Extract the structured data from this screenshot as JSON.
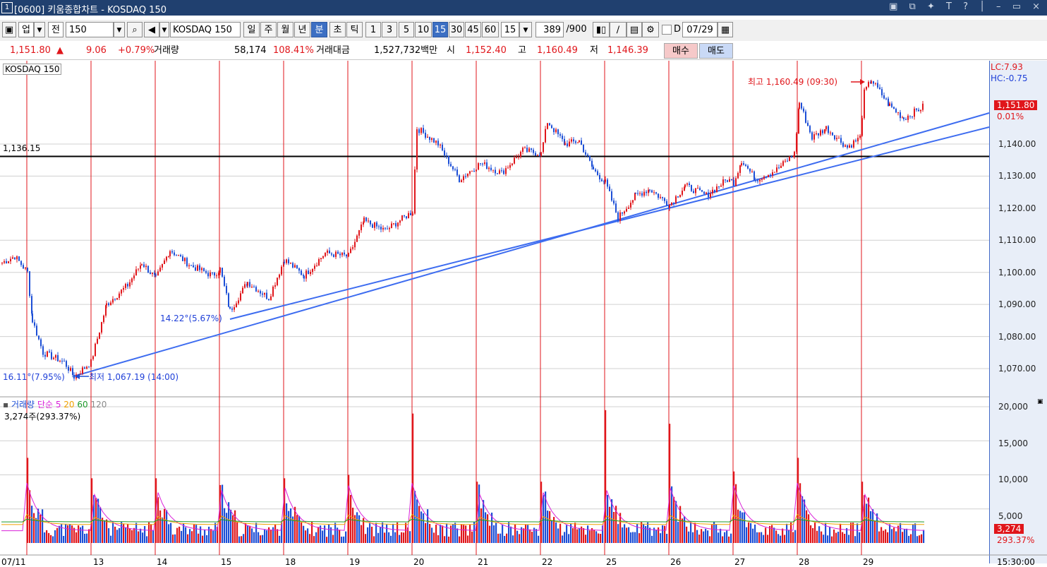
{
  "window": {
    "title": "[0600] 키움종합차트 - KOSDAQ 150",
    "icon": "1",
    "controls": "▣ ⧉ ✦ T ? │ – ▭ ×"
  },
  "toolbar": {
    "market": "업",
    "period_mode": "전",
    "code_value": "150",
    "index_name": "KOSDAQ 150",
    "period_buttons": [
      "일",
      "주",
      "월",
      "년",
      "분",
      "초",
      "틱"
    ],
    "selected_period": "분",
    "minute_buttons": [
      "1",
      "3",
      "5",
      "10",
      "15",
      "30",
      "45",
      "60"
    ],
    "selected_minute": "15",
    "minute_select": "15",
    "count_value": "389",
    "count_total": "/900",
    "date_value": "07/29",
    "date_prefix": "D"
  },
  "quote": {
    "price": "1,151.80",
    "arrow": "▲",
    "change": "9.06",
    "change_pct": "+0.79%",
    "volume_label": "거래량",
    "volume": "58,174",
    "volume_pct": "108.41%",
    "amount_label": "거래대금",
    "amount": "1,527,732백만",
    "open_label": "시",
    "open": "1,152.40",
    "high_label": "고",
    "high": "1,160.49",
    "low_label": "저",
    "low": "1,146.39",
    "buy_label": "매수",
    "sell_label": "매도"
  },
  "price_pane": {
    "legend": "KOSDAQ 150",
    "hline_label": "1,136.15",
    "hline_value": 1136.15,
    "lc": "LC:7.93",
    "hc": "HC:-0.75",
    "current_price": "1,151.80",
    "current_pct": "0.01%",
    "high_note": "최고 1,160.49 (09:30)",
    "low_note": "최저 1,067.19 (14:00)",
    "trend1_note": "16.11°(7.95%)",
    "trend2_note": "14.22°(5.67%)",
    "y_ticks": [
      "1,140.00",
      "1,130.00",
      "1,120.00",
      "1,110.00",
      "1,100.00",
      "1,090.00",
      "1,080.00",
      "1,070.00"
    ]
  },
  "volume_pane": {
    "legend": {
      "name": "거래량",
      "ma_type": "단순",
      "ma5": "5",
      "ma20": "20",
      "ma60": "60",
      "ma120": "120"
    },
    "current_note": "3,274주(293.37%)",
    "y_ticks": [
      "20,000",
      "15,000",
      "10,000",
      "5,000"
    ],
    "current_value": "3,274",
    "current_pct": "293.37%"
  },
  "x_axis": {
    "labels": [
      "07/11",
      "13",
      "14",
      "15",
      "18",
      "19",
      "20",
      "21",
      "22",
      "25",
      "26",
      "27",
      "28",
      "29"
    ],
    "time_label": "15:30:00"
  },
  "colors": {
    "up": "#e0161b",
    "down": "#1d4fd6",
    "trend": "#3d6cf0",
    "day_divider": "#e0161b",
    "ma5": "#d920d9",
    "ma20": "#f0a000",
    "ma60": "#1d9a2a",
    "ma120": "#8a8a8a"
  }
}
